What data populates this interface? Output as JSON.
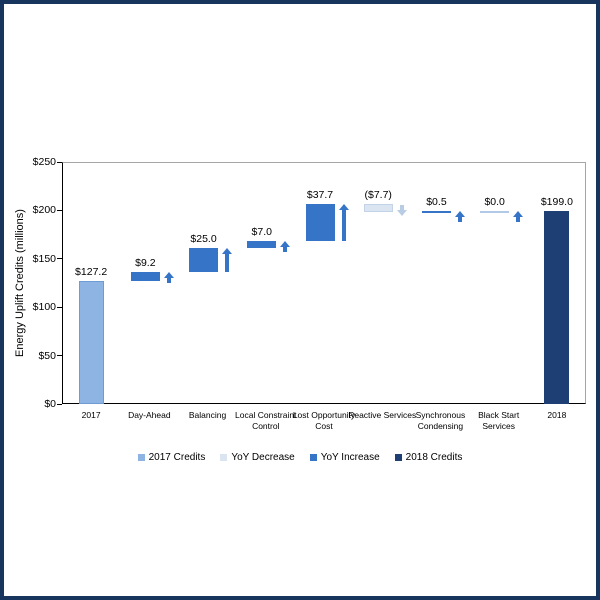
{
  "page": {
    "background": "#FFFFFF",
    "outer_border_color": "#17355D"
  },
  "colors": {
    "credits_2017": "#8DB4E2",
    "credits_2017_border": "#6F9BD2",
    "yoy_decrease": "#DBE5F1",
    "yoy_decrease_border": "#C3D3E8",
    "yoy_increase": "#3674C8",
    "zero_change_line": "#B3C9E8",
    "credits_2018": "#1E3F74",
    "decrease_arrow": "#B8CCE4",
    "axis_line": "#000000",
    "plot_frame": "#A6A6A6",
    "label_text": "#000000"
  },
  "chart_data": {
    "type": "bar",
    "subtype": "waterfall",
    "title": "",
    "ylabel": "Energy Uplift Credits (millions)",
    "xlabel": "",
    "ylim": [
      0,
      250
    ],
    "grid": false,
    "legend_position": "bottom",
    "y_ticks": [
      {
        "label": "$0",
        "value": 0
      },
      {
        "label": "$50",
        "value": 50
      },
      {
        "label": "$100",
        "value": 100
      },
      {
        "label": "$150",
        "value": 150
      },
      {
        "label": "$200",
        "value": 200
      },
      {
        "label": "$250",
        "value": 250
      }
    ],
    "items": [
      {
        "category": "2017",
        "category_lines": [
          "2017"
        ],
        "label": "$127.2",
        "value": 127.2,
        "kind": "start",
        "arrow": "none"
      },
      {
        "category": "Day-Ahead",
        "category_lines": [
          "Day-Ahead"
        ],
        "label": "$9.2",
        "value": 9.2,
        "kind": "increase",
        "arrow": "up"
      },
      {
        "category": "Balancing",
        "category_lines": [
          "Balancing"
        ],
        "label": "$25.0",
        "value": 25.0,
        "kind": "increase",
        "arrow": "up"
      },
      {
        "category": "Local Constraint Control",
        "category_lines": [
          "Local Constraint",
          "Control"
        ],
        "label": "$7.0",
        "value": 7.0,
        "kind": "increase",
        "arrow": "up"
      },
      {
        "category": "Lost Opportunity Cost",
        "category_lines": [
          "Lost Opportunity",
          "Cost"
        ],
        "label": "$37.7",
        "value": 37.7,
        "kind": "increase",
        "arrow": "up"
      },
      {
        "category": "Reactive Services",
        "category_lines": [
          "Reactive Services"
        ],
        "label": "($7.7)",
        "value": -7.7,
        "kind": "decrease",
        "arrow": "down"
      },
      {
        "category": "Synchronous Condensing",
        "category_lines": [
          "Synchronous",
          "Condensing"
        ],
        "label": "$0.5",
        "value": 0.5,
        "kind": "increase",
        "arrow": "up"
      },
      {
        "category": "Black Start Services",
        "category_lines": [
          "Black Start",
          "Services"
        ],
        "label": "$0.0",
        "value": 0.0,
        "kind": "zero",
        "arrow": "up"
      },
      {
        "category": "2018",
        "category_lines": [
          "2018"
        ],
        "label": "$199.0",
        "value": 199.0,
        "kind": "end",
        "arrow": "none"
      }
    ],
    "legend": [
      {
        "label": "2017 Credits",
        "color": "#8DB4E2"
      },
      {
        "label": "YoY Decrease",
        "color": "#DBE5F1"
      },
      {
        "label": "YoY Increase",
        "color": "#3674C8"
      },
      {
        "label": "2018 Credits",
        "color": "#1E3F74"
      }
    ]
  }
}
